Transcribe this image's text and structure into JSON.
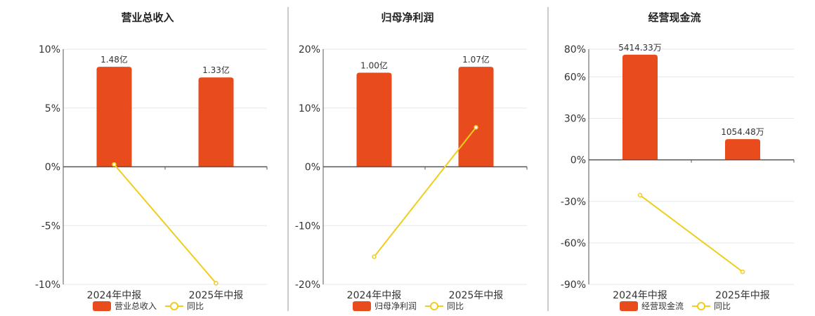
{
  "colors": {
    "bar": "#e84c1c",
    "line": "#f0cd1e",
    "grid": "#e6e6ef",
    "axis": "#555555",
    "divider": "#999999"
  },
  "chart_data": [
    {
      "type": "bar",
      "title": "营业总收入",
      "categories": [
        "2024年中报",
        "2025年中报"
      ],
      "ylim": [
        -10,
        10
      ],
      "yticks": [
        10,
        5,
        0,
        -5,
        -10
      ],
      "ytick_labels": [
        "10%",
        "5%",
        "0%",
        "-5%",
        "-10%"
      ],
      "grid": true,
      "legend_position": "bottom",
      "series": [
        {
          "name": "营业总收入",
          "type": "bar",
          "values": [
            8.5,
            7.6
          ],
          "data_labels": [
            "1.48亿",
            "1.33亿"
          ]
        },
        {
          "name": "同比",
          "type": "line",
          "values": [
            0.2,
            -9.9
          ]
        }
      ]
    },
    {
      "type": "bar",
      "title": "归母净利润",
      "categories": [
        "2024年中报",
        "2025年中报"
      ],
      "ylim": [
        -20,
        20
      ],
      "yticks": [
        20,
        10,
        0,
        -10,
        -20
      ],
      "ytick_labels": [
        "20%",
        "10%",
        "0%",
        "-10%",
        "-20%"
      ],
      "grid": true,
      "legend_position": "bottom",
      "series": [
        {
          "name": "归母净利润",
          "type": "bar",
          "values": [
            16.0,
            17.0
          ],
          "data_labels": [
            "1.00亿",
            "1.07亿"
          ]
        },
        {
          "name": "同比",
          "type": "line",
          "values": [
            -15.3,
            6.7
          ]
        }
      ]
    },
    {
      "type": "bar",
      "title": "经营现金流",
      "categories": [
        "2024年中报",
        "2025年中报"
      ],
      "ylim": [
        -90,
        80
      ],
      "yticks": [
        80,
        60,
        30,
        0,
        -30,
        -60,
        -90
      ],
      "ytick_labels": [
        "80%",
        "60%",
        "30%",
        "0%",
        "-30%",
        "-60%",
        "-90%"
      ],
      "grid": true,
      "legend_position": "bottom",
      "series": [
        {
          "name": "经营现金流",
          "type": "bar",
          "values": [
            76,
            15
          ],
          "data_labels": [
            "5414.33万",
            "1054.48万"
          ]
        },
        {
          "name": "同比",
          "type": "line",
          "values": [
            -25.5,
            -80.9
          ]
        }
      ]
    }
  ]
}
